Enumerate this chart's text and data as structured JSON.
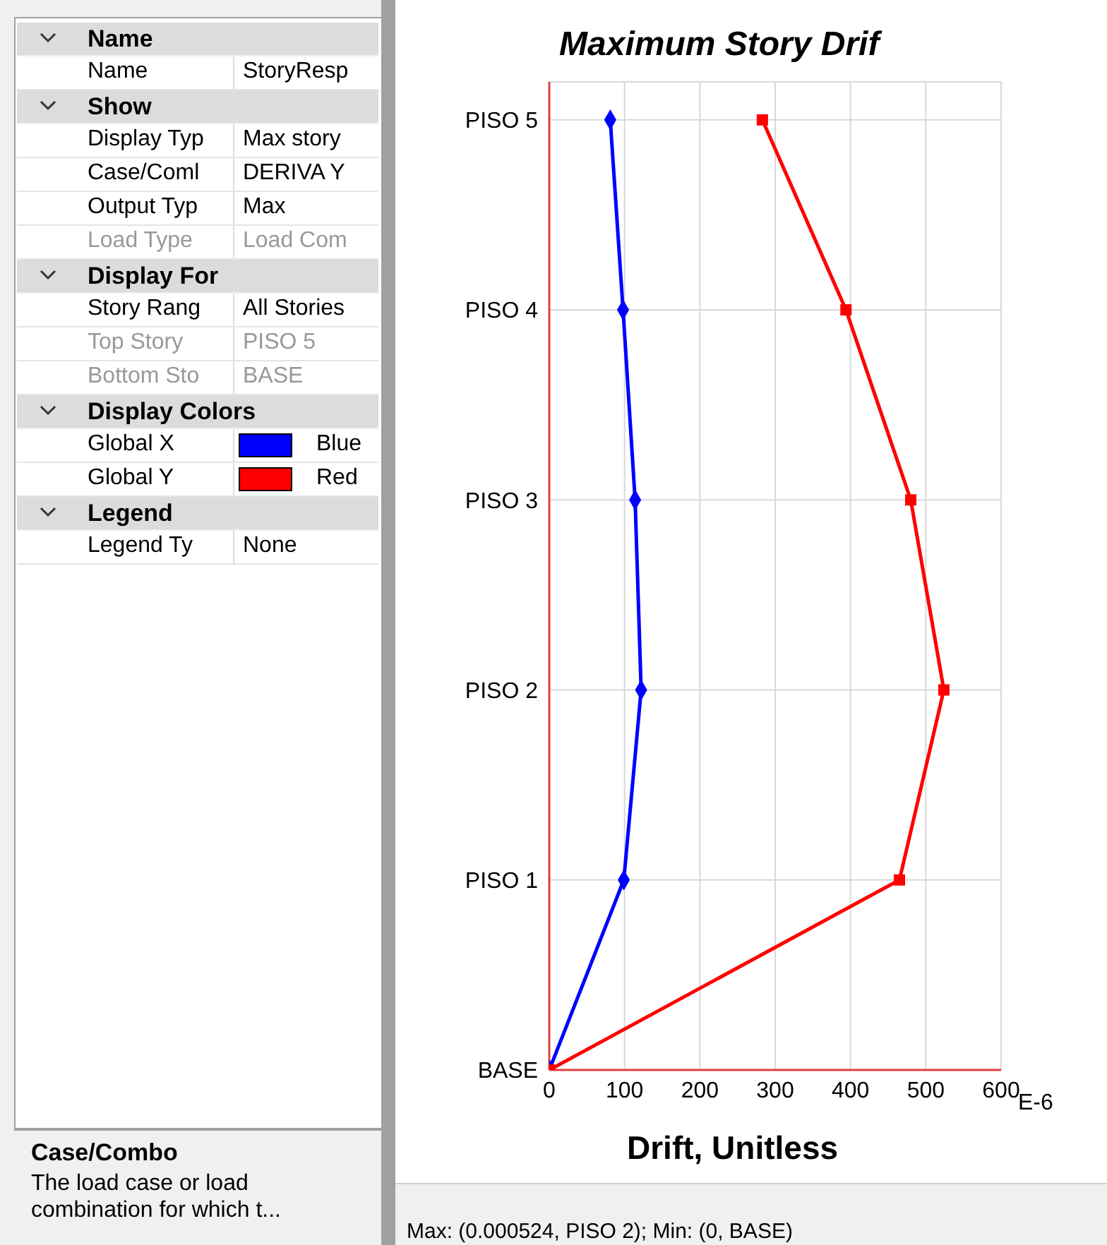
{
  "chart_data": [
    {
      "type": "other",
      "colors": [
        "#0000ff",
        "#ff0000"
      ],
      "annotations": [
        "Name",
        "Name",
        "StoryResp",
        "Show",
        "Display Typ",
        "Max story",
        "Case/Coml",
        "DERIVA Y",
        "Output Typ",
        "Max",
        "Load Type",
        "Load Com",
        "Display For",
        "Story Rang",
        "All Stories",
        "Top Story",
        "PISO 5",
        "Bottom Sto",
        "BASE",
        "Display Colors",
        "Global X",
        "Blue",
        "Global Y",
        "Red",
        "Legend",
        "Legend Ty",
        "None",
        "Case/Combo",
        "The load case or load combination for which t..."
      ]
    },
    {
      "type": "line",
      "orientation": "horizontal",
      "title": "Maximum Story Drif",
      "xlabel": "Drift, Unitless",
      "xlim": [
        0,
        600
      ],
      "xticks": [
        0,
        100,
        200,
        300,
        400,
        500,
        600
      ],
      "categories": [
        "PISO 5",
        "PISO 4",
        "PISO 3",
        "PISO 2",
        "PISO 1",
        "BASE"
      ],
      "grid": true,
      "line_style": "solid",
      "series": [
        {
          "color": "#0000ff",
          "marker": "diamond",
          "values": [
            81,
            98,
            114,
            122,
            99,
            0
          ]
        },
        {
          "color": "#ff0000",
          "marker": "square",
          "values": [
            283,
            394,
            480,
            524,
            465,
            0
          ]
        }
      ],
      "annotations": [
        "E-6",
        "Max: (0.000524, PISO 2);  Min: (0, BASE)"
      ]
    }
  ]
}
